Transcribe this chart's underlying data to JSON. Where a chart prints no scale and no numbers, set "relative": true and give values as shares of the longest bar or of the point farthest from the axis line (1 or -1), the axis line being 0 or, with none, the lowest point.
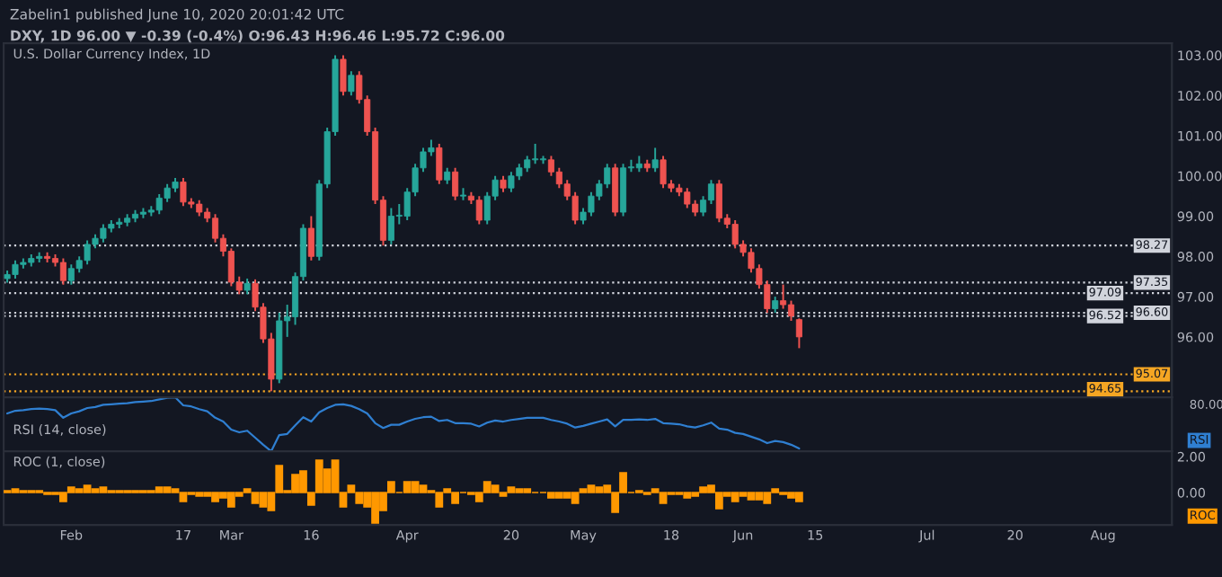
{
  "chart_data": [
    {
      "type": "candlestick",
      "title": "Zabelin1 published June 10, 2020 20:01:42 UTC",
      "subtitle": "DXY, 1D 96.00 ▼ -0.39 (-0.4%) O:96.43 H:96.46 L:95.72 C:96.00",
      "annotations": [
        "U.S. Dollar Currency Index, 1D"
      ],
      "categories": [
        null,
        null,
        null,
        null,
        null,
        null,
        null,
        null,
        null,
        null,
        null,
        null,
        null,
        null,
        null,
        null,
        null,
        null,
        null,
        null,
        null,
        null,
        null,
        null,
        null,
        null,
        null,
        null,
        null,
        null,
        null,
        null,
        null,
        null,
        null,
        null,
        null,
        null,
        null,
        null,
        null,
        null,
        null,
        null,
        null,
        null,
        null,
        null,
        null,
        null,
        null,
        null,
        null,
        null,
        null,
        null,
        null,
        null,
        null,
        null,
        null,
        null,
        null,
        null,
        null,
        null,
        null,
        null,
        null,
        null,
        null,
        null,
        null,
        null,
        null,
        null,
        null,
        null,
        null,
        null,
        null,
        null,
        null,
        null,
        null,
        null,
        null,
        null,
        null,
        null,
        null,
        null,
        null,
        null,
        null,
        null,
        null,
        null,
        null,
        null,
        null,
        null,
        null,
        null,
        null,
        null,
        null,
        null,
        null,
        null,
        null,
        null,
        null,
        null,
        null,
        null,
        null,
        null,
        null,
        null,
        null,
        null,
        null,
        null,
        null,
        null,
        null,
        null,
        null,
        null,
        null,
        null,
        null,
        null,
        null,
        null,
        null,
        null,
        null,
        null,
        null,
        null,
        null,
        null,
        null,
        null
      ],
      "ohlc": [
        [
          97.45,
          97.65,
          97.35,
          97.55
        ],
        [
          97.55,
          97.9,
          97.45,
          97.8
        ],
        [
          97.8,
          97.95,
          97.7,
          97.85
        ],
        [
          97.85,
          98.05,
          97.75,
          97.95
        ],
        [
          97.95,
          98.1,
          97.85,
          98.0
        ],
        [
          98.0,
          98.1,
          97.85,
          97.95
        ],
        [
          97.95,
          98.05,
          97.75,
          97.85
        ],
        [
          97.85,
          97.95,
          97.3,
          97.4
        ],
        [
          97.4,
          97.8,
          97.3,
          97.7
        ],
        [
          97.7,
          98.0,
          97.6,
          97.9
        ],
        [
          97.9,
          98.4,
          97.8,
          98.3
        ],
        [
          98.3,
          98.55,
          98.2,
          98.45
        ],
        [
          98.45,
          98.8,
          98.35,
          98.7
        ],
        [
          98.7,
          98.9,
          98.6,
          98.8
        ],
        [
          98.8,
          98.95,
          98.7,
          98.85
        ],
        [
          98.85,
          99.05,
          98.75,
          98.95
        ],
        [
          98.95,
          99.15,
          98.85,
          99.05
        ],
        [
          99.05,
          99.2,
          98.95,
          99.1
        ],
        [
          99.1,
          99.25,
          99.0,
          99.15
        ],
        [
          99.15,
          99.55,
          99.05,
          99.45
        ],
        [
          99.45,
          99.8,
          99.35,
          99.7
        ],
        [
          99.7,
          99.95,
          99.6,
          99.85
        ],
        [
          99.85,
          99.95,
          99.25,
          99.35
        ],
        [
          99.35,
          99.45,
          99.2,
          99.3
        ],
        [
          99.3,
          99.4,
          99.0,
          99.1
        ],
        [
          99.1,
          99.2,
          98.85,
          98.95
        ],
        [
          98.95,
          99.05,
          98.35,
          98.45
        ],
        [
          98.45,
          98.55,
          98.0,
          98.13
        ],
        [
          98.13,
          98.2,
          97.26,
          97.36
        ],
        [
          97.36,
          97.5,
          97.06,
          97.16
        ],
        [
          97.16,
          97.45,
          97.06,
          97.33
        ],
        [
          97.33,
          97.43,
          96.64,
          96.74
        ],
        [
          96.74,
          96.84,
          95.85,
          95.95
        ],
        [
          95.95,
          96.1,
          94.65,
          94.95
        ],
        [
          94.95,
          96.6,
          94.85,
          96.4
        ],
        [
          96.4,
          96.8,
          96.0,
          96.5
        ],
        [
          96.5,
          97.6,
          96.3,
          97.5
        ],
        [
          97.5,
          98.8,
          97.4,
          98.7
        ],
        [
          98.7,
          99.0,
          97.9,
          98.0
        ],
        [
          98.0,
          99.9,
          97.9,
          99.8
        ],
        [
          99.8,
          101.2,
          99.7,
          101.1
        ],
        [
          101.1,
          103.0,
          101.0,
          102.9
        ],
        [
          102.9,
          103.0,
          102.0,
          102.1
        ],
        [
          102.1,
          102.6,
          102.0,
          102.5
        ],
        [
          102.5,
          102.6,
          101.8,
          101.9
        ],
        [
          101.9,
          102.0,
          101.0,
          101.1
        ],
        [
          101.1,
          101.2,
          99.3,
          99.4
        ],
        [
          99.4,
          99.5,
          98.27,
          98.4
        ],
        [
          98.4,
          99.2,
          98.3,
          99.0
        ],
        [
          99.0,
          99.3,
          98.8,
          99.0
        ],
        [
          99.0,
          99.7,
          98.9,
          99.6
        ],
        [
          99.6,
          100.3,
          99.5,
          100.2
        ],
        [
          100.2,
          100.7,
          100.1,
          100.6
        ],
        [
          100.6,
          100.9,
          100.5,
          100.7
        ],
        [
          100.7,
          100.8,
          99.8,
          99.9
        ],
        [
          99.9,
          100.2,
          99.8,
          100.1
        ],
        [
          100.1,
          100.2,
          99.4,
          99.5
        ],
        [
          99.5,
          99.7,
          99.4,
          99.5
        ],
        [
          99.5,
          99.6,
          99.3,
          99.4
        ],
        [
          99.4,
          99.5,
          98.8,
          98.9
        ],
        [
          98.9,
          99.6,
          98.8,
          99.5
        ],
        [
          99.5,
          100.0,
          99.4,
          99.9
        ],
        [
          99.9,
          100.0,
          99.6,
          99.7
        ],
        [
          99.7,
          100.1,
          99.6,
          100.0
        ],
        [
          100.0,
          100.3,
          99.9,
          100.2
        ],
        [
          100.2,
          100.5,
          100.1,
          100.4
        ],
        [
          100.4,
          100.8,
          100.3,
          100.4
        ],
        [
          100.4,
          100.5,
          100.3,
          100.4
        ],
        [
          100.4,
          100.5,
          100.0,
          100.1
        ],
        [
          100.1,
          100.2,
          99.7,
          99.8
        ],
        [
          99.8,
          99.9,
          99.4,
          99.5
        ],
        [
          99.5,
          99.6,
          98.8,
          98.9
        ],
        [
          98.9,
          99.2,
          98.8,
          99.1
        ],
        [
          99.1,
          99.6,
          99.0,
          99.5
        ],
        [
          99.5,
          99.9,
          99.4,
          99.8
        ],
        [
          99.8,
          100.3,
          99.7,
          100.2
        ],
        [
          100.2,
          100.3,
          99.0,
          99.1
        ],
        [
          99.1,
          100.3,
          99.0,
          100.2
        ],
        [
          100.2,
          100.4,
          100.1,
          100.2
        ],
        [
          100.2,
          100.5,
          100.1,
          100.3
        ],
        [
          100.3,
          100.4,
          100.1,
          100.2
        ],
        [
          100.2,
          100.7,
          100.1,
          100.4
        ],
        [
          100.4,
          100.5,
          99.7,
          99.8
        ],
        [
          99.8,
          99.9,
          99.6,
          99.7
        ],
        [
          99.7,
          99.8,
          99.5,
          99.6
        ],
        [
          99.6,
          99.7,
          99.2,
          99.3
        ],
        [
          99.3,
          99.4,
          99.0,
          99.1
        ],
        [
          99.1,
          99.5,
          99.0,
          99.4
        ],
        [
          99.4,
          99.9,
          99.3,
          99.8
        ],
        [
          99.8,
          99.9,
          98.85,
          98.95
        ],
        [
          98.95,
          99.05,
          98.7,
          98.8
        ],
        [
          98.8,
          98.9,
          98.2,
          98.3
        ],
        [
          98.3,
          98.4,
          98.0,
          98.1
        ],
        [
          98.1,
          98.2,
          97.6,
          97.7
        ],
        [
          97.7,
          97.8,
          97.2,
          97.3
        ],
        [
          97.3,
          97.4,
          96.6,
          96.7
        ],
        [
          96.7,
          97.0,
          96.6,
          96.9
        ],
        [
          96.9,
          97.3,
          96.7,
          96.8
        ],
        [
          96.8,
          96.9,
          96.4,
          96.52
        ],
        [
          96.43,
          96.46,
          95.72,
          96.0
        ],
        null,
        null,
        null,
        null,
        null,
        null,
        null,
        null,
        null,
        null,
        null,
        null,
        null,
        null,
        null,
        null,
        null,
        null,
        null,
        null,
        null,
        null,
        null,
        null,
        null,
        null,
        null,
        null,
        null,
        null,
        null,
        null,
        null,
        null,
        null,
        null,
        null,
        null,
        null,
        null,
        null,
        null,
        null,
        null,
        null,
        null
      ],
      "ylim": [
        94.5,
        103.3
      ],
      "yticks": [
        {
          "value": 96,
          "label": "96.00"
        },
        {
          "value": 97,
          "label": "97.00"
        },
        {
          "value": 98,
          "label": "98.00"
        },
        {
          "value": 99,
          "label": "99.00"
        },
        {
          "value": 100,
          "label": "100.00"
        },
        {
          "value": 101,
          "label": "101.00"
        },
        {
          "value": 102,
          "label": "102.00"
        },
        {
          "value": 103,
          "label": "103.00"
        }
      ],
      "ref_lines": [
        {
          "axis": "y",
          "value": 98.27,
          "label": "98.27",
          "color": "#d1d4dc",
          "line_style": "dotted"
        },
        {
          "axis": "y",
          "value": 97.35,
          "label": "97.35",
          "color": "#d1d4dc",
          "line_style": "dotted"
        },
        {
          "axis": "y",
          "value": 97.09,
          "label": "97.09",
          "color": "#d1d4dc",
          "line_style": "dotted"
        },
        {
          "axis": "y",
          "value": 96.6,
          "label": "96.60",
          "color": "#d1d4dc",
          "line_style": "dotted"
        },
        {
          "axis": "y",
          "value": 96.52,
          "label": "96.52",
          "color": "#d1d4dc",
          "line_style": "dotted"
        },
        {
          "axis": "y",
          "value": 95.07,
          "label": "95.07",
          "color": "#f5a623",
          "line_style": "dotted"
        },
        {
          "axis": "y",
          "value": 94.65,
          "label": "94.65",
          "color": "#f5a623",
          "line_style": "dotted"
        }
      ],
      "tick_labels": "y"
    },
    {
      "type": "line",
      "title": "RSI (14, close)",
      "relative": true,
      "annotations": [
        "80.00",
        "RSI"
      ],
      "tick_labels": false,
      "categories": [
        null,
        null,
        null,
        null,
        null,
        null,
        null,
        null,
        null,
        null,
        null,
        null,
        null,
        null,
        null,
        null,
        null,
        null,
        null,
        null,
        null,
        null,
        null,
        null,
        null,
        null,
        null,
        null,
        null,
        null,
        null,
        null,
        null,
        null,
        null,
        null,
        null,
        null,
        null,
        null,
        null,
        null,
        null,
        null,
        null,
        null,
        null,
        null,
        null,
        null,
        null,
        null,
        null,
        null,
        null,
        null,
        null,
        null,
        null,
        null,
        null,
        null,
        null,
        null,
        null,
        null,
        null,
        null,
        null,
        null,
        null,
        null,
        null,
        null,
        null,
        null,
        null,
        null,
        null,
        null,
        null,
        null,
        null,
        null,
        null,
        null,
        null,
        null,
        null,
        null,
        null,
        null,
        null,
        null,
        null,
        null,
        null,
        null,
        null,
        null,
        null,
        null,
        null,
        null,
        null,
        null,
        null,
        null,
        null,
        null,
        null,
        null,
        null,
        null,
        null,
        null,
        null,
        null,
        null,
        null,
        null,
        null,
        null,
        null,
        null,
        null,
        null,
        null,
        null,
        null,
        null,
        null,
        null,
        null,
        null,
        null,
        null,
        null,
        null,
        null,
        null,
        null,
        null,
        null,
        null,
        null
      ],
      "series": [
        {
          "color": "#2f7fd1",
          "values": [
            0.7,
            0.75,
            0.76,
            0.78,
            0.79,
            0.78,
            0.76,
            0.62,
            0.7,
            0.74,
            0.8,
            0.82,
            0.86,
            0.87,
            0.88,
            0.89,
            0.91,
            0.92,
            0.93,
            0.96,
            0.99,
            1.0,
            0.85,
            0.83,
            0.78,
            0.74,
            0.62,
            0.55,
            0.4,
            0.35,
            0.38,
            0.25,
            0.12,
            0.0,
            0.3,
            0.32,
            0.48,
            0.63,
            0.55,
            0.72,
            0.8,
            0.86,
            0.87,
            0.84,
            0.78,
            0.7,
            0.52,
            0.43,
            0.49,
            0.49,
            0.55,
            0.6,
            0.63,
            0.64,
            0.56,
            0.58,
            0.52,
            0.52,
            0.51,
            0.46,
            0.53,
            0.57,
            0.55,
            0.58,
            0.6,
            0.62,
            0.62,
            0.62,
            0.58,
            0.55,
            0.51,
            0.44,
            0.47,
            0.51,
            0.55,
            0.59,
            0.46,
            0.58,
            0.58,
            0.59,
            0.58,
            0.6,
            0.52,
            0.51,
            0.5,
            0.46,
            0.44,
            0.48,
            0.53,
            0.42,
            0.4,
            0.34,
            0.32,
            0.27,
            0.22,
            0.15,
            0.19,
            0.17,
            0.12,
            0.05,
            null,
            null,
            null,
            null,
            null,
            null,
            null,
            null,
            null,
            null,
            null,
            null,
            null,
            null,
            null,
            null,
            null,
            null,
            null,
            null,
            null,
            null,
            null,
            null,
            null,
            null,
            null,
            null,
            null,
            null,
            null,
            null,
            null,
            null,
            null,
            null,
            null,
            null,
            null,
            null,
            null,
            null,
            null,
            null,
            null,
            null
          ]
        }
      ]
    },
    {
      "type": "bar",
      "title": "ROC (1, close)",
      "annotations": [
        "ROC"
      ],
      "categories": [
        null,
        null,
        null,
        null,
        null,
        null,
        null,
        null,
        "Feb",
        null,
        null,
        null,
        null,
        null,
        null,
        null,
        null,
        null,
        null,
        null,
        null,
        null,
        "17",
        null,
        null,
        null,
        null,
        null,
        "Mar",
        null,
        null,
        null,
        null,
        null,
        null,
        null,
        null,
        null,
        "16",
        null,
        null,
        null,
        null,
        null,
        null,
        null,
        null,
        null,
        null,
        null,
        "Apr",
        null,
        null,
        null,
        null,
        null,
        null,
        null,
        null,
        null,
        null,
        null,
        null,
        "20",
        null,
        null,
        null,
        null,
        null,
        null,
        null,
        null,
        "May",
        null,
        null,
        null,
        null,
        null,
        null,
        null,
        null,
        null,
        null,
        "18",
        null,
        null,
        null,
        null,
        null,
        null,
        null,
        null,
        "Jun",
        null,
        null,
        null,
        null,
        null,
        null,
        null,
        null,
        "15",
        null,
        null,
        null,
        null,
        null,
        null,
        null,
        null,
        null,
        null,
        null,
        null,
        null,
        "Jul",
        null,
        null,
        null,
        null,
        null,
        null,
        null,
        null,
        null,
        null,
        "20",
        null,
        null,
        null,
        null,
        null,
        null,
        null,
        null,
        null,
        null,
        "Aug",
        null,
        null,
        null,
        null,
        null,
        null,
        null,
        null
      ],
      "series": [
        {
          "color": "#ff9800",
          "values": [
            0.1,
            0.2,
            0.1,
            0.1,
            0.1,
            -0.1,
            -0.1,
            -0.5,
            0.3,
            0.2,
            0.4,
            0.2,
            0.3,
            0.1,
            0.1,
            0.1,
            0.1,
            0.1,
            0.1,
            0.3,
            0.3,
            0.2,
            -0.5,
            -0.1,
            -0.2,
            -0.2,
            -0.5,
            -0.3,
            -0.8,
            -0.2,
            0.2,
            -0.6,
            -0.8,
            -1.0,
            1.5,
            0.1,
            1.0,
            1.2,
            -0.7,
            1.8,
            1.3,
            1.8,
            -0.8,
            0.4,
            -0.6,
            -0.8,
            -1.7,
            -1.0,
            0.6,
            0.0,
            0.6,
            0.6,
            0.4,
            0.1,
            -0.8,
            0.2,
            -0.6,
            0.0,
            -0.1,
            -0.5,
            0.6,
            0.4,
            -0.2,
            0.3,
            0.2,
            0.2,
            0.0,
            0.0,
            -0.3,
            -0.3,
            -0.3,
            -0.6,
            0.2,
            0.4,
            0.3,
            0.4,
            -1.1,
            1.1,
            0.0,
            0.1,
            -0.1,
            0.2,
            -0.6,
            -0.1,
            -0.1,
            -0.3,
            -0.2,
            0.3,
            0.4,
            -0.9,
            -0.2,
            -0.5,
            -0.2,
            -0.4,
            -0.4,
            -0.6,
            0.2,
            -0.1,
            -0.3,
            -0.5,
            null,
            null,
            null,
            null,
            null,
            null,
            null,
            null,
            null,
            null,
            null,
            null,
            null,
            null,
            null,
            null,
            null,
            null,
            null,
            null,
            null,
            null,
            null,
            null,
            null,
            null,
            null,
            null,
            null,
            null,
            null,
            null,
            null,
            null,
            null,
            null,
            null,
            null,
            null,
            null,
            null,
            null,
            null,
            null,
            null,
            null
          ]
        }
      ],
      "ylim": [
        -1.8,
        2.3
      ],
      "yticks": [
        {
          "value": 2,
          "label": "2.00"
        },
        {
          "value": 0,
          "label": "0.00"
        }
      ]
    }
  ]
}
